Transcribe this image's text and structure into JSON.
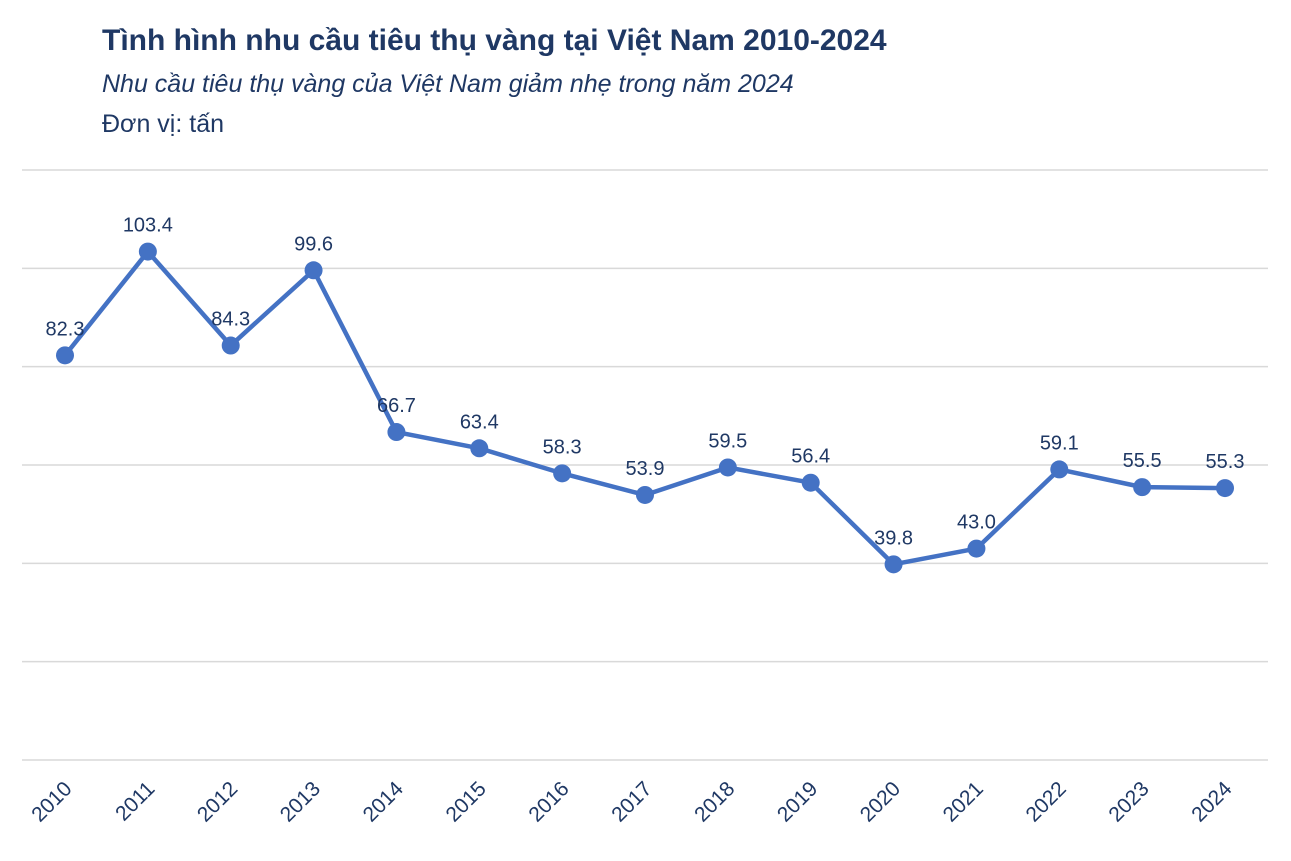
{
  "chart_data": {
    "type": "line",
    "title": "Tình hình nhu cầu tiêu thụ vàng tại Việt Nam 2010-2024",
    "subtitle": "Nhu cầu tiêu thụ vàng của Việt Nam giảm nhẹ trong năm 2024",
    "unit": "Đơn vị: tấn",
    "categories": [
      "2010",
      "2011",
      "2012",
      "2013",
      "2014",
      "2015",
      "2016",
      "2017",
      "2018",
      "2019",
      "2020",
      "2021",
      "2022",
      "2023",
      "2024"
    ],
    "values": [
      82.3,
      103.4,
      84.3,
      99.6,
      66.7,
      63.4,
      58.3,
      53.9,
      59.5,
      56.4,
      39.8,
      43.0,
      59.1,
      55.5,
      55.3
    ],
    "data_labels": [
      "82.3",
      "103.4",
      "84.3",
      "99.6",
      "66.7",
      "63.4",
      "58.3",
      "53.9",
      "59.5",
      "56.4",
      "39.8",
      "43.0",
      "59.1",
      "55.5",
      "55.3"
    ],
    "ylim": [
      0,
      120
    ],
    "ytick_step": 20,
    "ytick_labels_shown": false,
    "grid": true,
    "xlabel": "",
    "ylabel": "",
    "colors": {
      "line": "#4472c4",
      "text": "#1f3864",
      "grid": "#d9d9d9"
    }
  }
}
